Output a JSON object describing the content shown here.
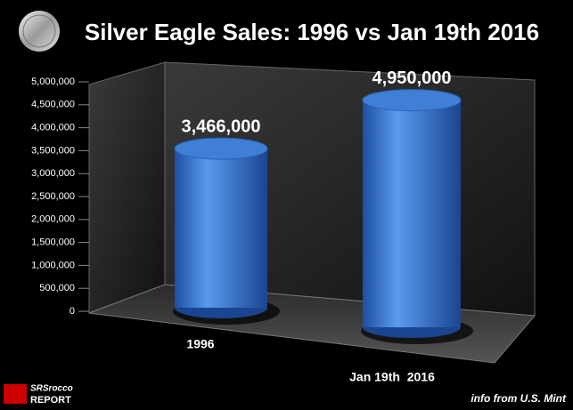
{
  "chart_data": {
    "type": "bar",
    "title": "Silver Eagle Sales: 1996 vs Jan 19th 2016",
    "categories": [
      "1996",
      "Jan 19th  2016"
    ],
    "values": [
      3466000,
      4950000
    ],
    "value_labels": [
      "3,466,000",
      "4,950,000"
    ],
    "color": "#3f7fd6",
    "ylim": [
      0,
      5000000
    ],
    "yticks": [
      0,
      {
        "value": 500000,
        "label": "500,000"
      },
      {
        "value": 1000000,
        "label": "1,000,000"
      },
      {
        "value": 1500000,
        "label": "1,500,000"
      },
      {
        "value": 2000000,
        "label": "2,000,000"
      },
      {
        "value": 2500000,
        "label": "2,500,000"
      },
      {
        "value": 3000000,
        "label": "3,000,000"
      },
      {
        "value": 3500000,
        "label": "3,500,000"
      },
      {
        "value": 4000000,
        "label": "4,000,000"
      },
      {
        "value": 4500000,
        "label": "4,500,000"
      },
      {
        "value": 5000000,
        "label": "5,000,000"
      }
    ],
    "grid": false,
    "source": "info from U.S. Mint",
    "logo": {
      "line1": "SRSrocco",
      "line2": "REPORT"
    }
  }
}
